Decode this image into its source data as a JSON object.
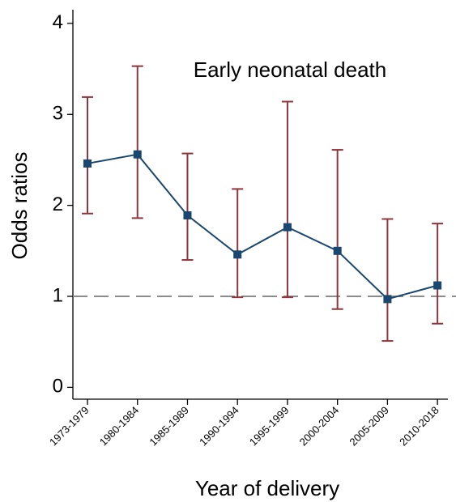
{
  "chart_data": {
    "type": "line",
    "annotation": "Early neonatal death",
    "x_label": "Year of delivery",
    "y_label": "Odds ratios",
    "categories": [
      "1973-1979",
      "1980-1984",
      "1985-1989",
      "1990-1994",
      "1995-1999",
      "2000-2004",
      "2005-2009",
      "2010-2018"
    ],
    "series": [
      {
        "color": "#1a476f",
        "error_color": "#90353b",
        "values": [
          2.46,
          2.56,
          1.89,
          1.46,
          1.76,
          1.5,
          0.97,
          1.12
        ],
        "lower": [
          1.91,
          1.86,
          1.4,
          0.99,
          0.99,
          0.86,
          0.51,
          0.7
        ],
        "upper": [
          3.19,
          3.53,
          2.57,
          2.18,
          3.14,
          2.61,
          1.85,
          1.8
        ]
      }
    ],
    "reference_line": 1,
    "ylim": [
      -0.13,
      4.15
    ],
    "yticks": [
      0,
      1,
      2,
      3,
      4
    ]
  }
}
